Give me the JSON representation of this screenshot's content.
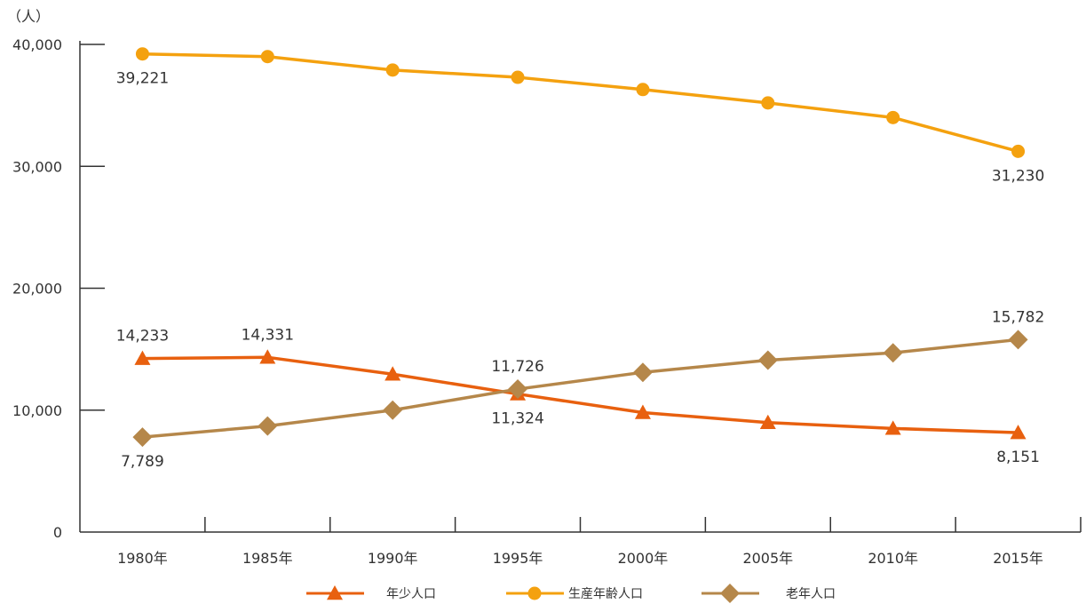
{
  "chart_data": {
    "type": "line",
    "unit_label": "（人）",
    "categories": [
      "1980年",
      "1985年",
      "1990年",
      "1995年",
      "2000年",
      "2005年",
      "2010年",
      "2015年"
    ],
    "ylim": [
      0,
      40000
    ],
    "yticks": [
      0,
      10000,
      20000,
      30000,
      40000
    ],
    "ytick_labels": [
      "0",
      "10,000",
      "20,000",
      "30,000",
      "40,000"
    ],
    "grid": false,
    "legend_position": "bottom",
    "series": [
      {
        "name": "年少人口",
        "marker": "triangle",
        "color": "#e8600f",
        "values": [
          14233,
          14331,
          12950,
          11324,
          9800,
          8980,
          8500,
          8151
        ],
        "labels": [
          {
            "index": 0,
            "text": "14,233",
            "position": "above"
          },
          {
            "index": 1,
            "text": "14,331",
            "position": "above"
          },
          {
            "index": 3,
            "text": "11,324",
            "position": "below"
          },
          {
            "index": 7,
            "text": "8,151",
            "position": "below"
          }
        ]
      },
      {
        "name": "生産年齢人口",
        "marker": "circle",
        "color": "#f4a10f",
        "values": [
          39221,
          39000,
          37900,
          37300,
          36300,
          35200,
          34000,
          31230
        ],
        "labels": [
          {
            "index": 0,
            "text": "39,221",
            "position": "below"
          },
          {
            "index": 7,
            "text": "31,230",
            "position": "below"
          }
        ]
      },
      {
        "name": "老年人口",
        "marker": "diamond",
        "color": "#b5874a",
        "values": [
          7789,
          8700,
          10000,
          11726,
          13100,
          14100,
          14700,
          15782
        ],
        "labels": [
          {
            "index": 0,
            "text": "7,789",
            "position": "below"
          },
          {
            "index": 3,
            "text": "11,726",
            "position": "above"
          },
          {
            "index": 7,
            "text": "15,782",
            "position": "above"
          }
        ]
      }
    ]
  }
}
